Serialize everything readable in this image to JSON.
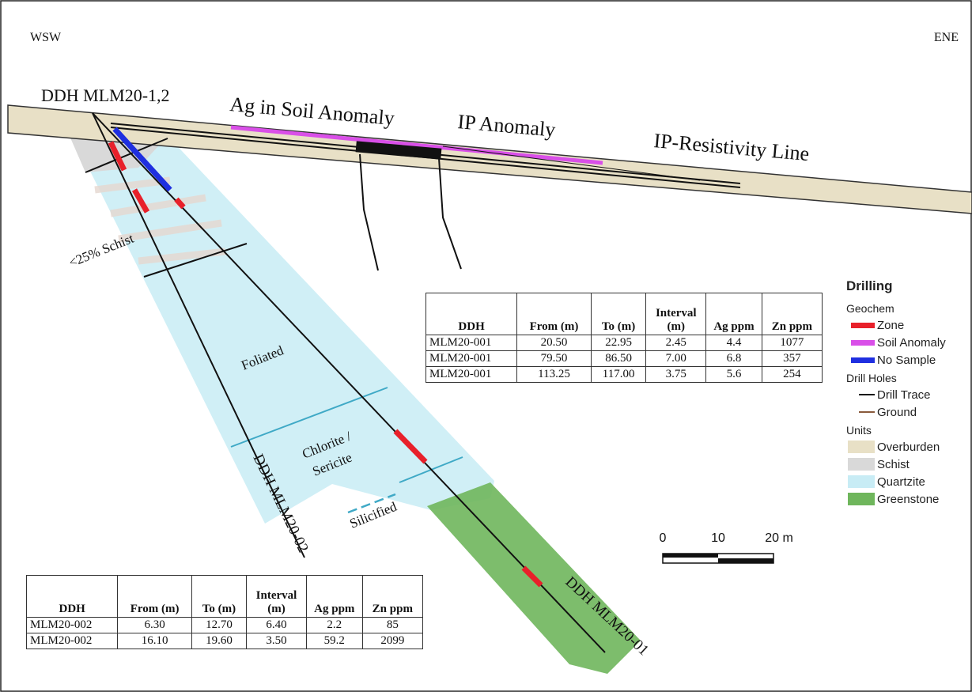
{
  "header": {
    "left": "WSW",
    "right": "ENE"
  },
  "section_labels": {
    "collar": "DDH MLM20-1,2",
    "soil_anomaly": "Ag in Soil Anomaly",
    "ip_anomaly": "IP Anomaly",
    "ip_line": "IP-Resistivity Line",
    "schist": "<25% Schist",
    "foliated": "Foliated",
    "chlorite": [
      "Chlorite /",
      "Sericite"
    ],
    "silicified": "Silicified",
    "hole_02": "DDH MLM20-02",
    "hole_01": "DDH MLM20-01"
  },
  "scale_bar": {
    "labels": [
      "0",
      "10",
      "20 m"
    ]
  },
  "legend": {
    "title": "Drilling",
    "groups": [
      {
        "title": "Geochem",
        "swatch": "bar",
        "items": [
          {
            "label": "Zone",
            "color": "#e8202a"
          },
          {
            "label": "Soil Anomaly",
            "color": "#d94fe8"
          },
          {
            "label": "No Sample",
            "color": "#1f2fe0"
          }
        ]
      },
      {
        "title": "Drill Holes",
        "swatch": "line",
        "items": [
          {
            "label": "Drill Trace",
            "color": "#111111"
          },
          {
            "label": "Ground",
            "color": "#8a5a3c"
          }
        ]
      },
      {
        "title": "Units",
        "swatch": "box",
        "items": [
          {
            "label": "Overburden",
            "color": "#e8e0c6"
          },
          {
            "label": "Schist",
            "color": "#d9d9d9"
          },
          {
            "label": "Quartzite",
            "color": "#c8ecf5"
          },
          {
            "label": "Greenstone",
            "color": "#6fb65c"
          }
        ]
      }
    ]
  },
  "tables": [
    {
      "columns": [
        "DDH",
        "From (m)",
        "To (m)",
        "Interval (m)",
        "Ag ppm",
        "Zn ppm"
      ],
      "rows": [
        [
          "MLM20-001",
          "20.50",
          "22.95",
          "2.45",
          "4.4",
          "1077"
        ],
        [
          "MLM20-001",
          "79.50",
          "86.50",
          "7.00",
          "6.8",
          "357"
        ],
        [
          "MLM20-001",
          "113.25",
          "117.00",
          "3.75",
          "5.6",
          "254"
        ]
      ]
    },
    {
      "columns": [
        "DDH",
        "From (m)",
        "To (m)",
        "Interval (m)",
        "Ag ppm",
        "Zn ppm"
      ],
      "rows": [
        [
          "MLM20-002",
          "6.30",
          "12.70",
          "6.40",
          "2.2",
          "85"
        ],
        [
          "MLM20-002",
          "16.10",
          "19.60",
          "3.50",
          "59.2",
          "2099"
        ]
      ]
    }
  ]
}
